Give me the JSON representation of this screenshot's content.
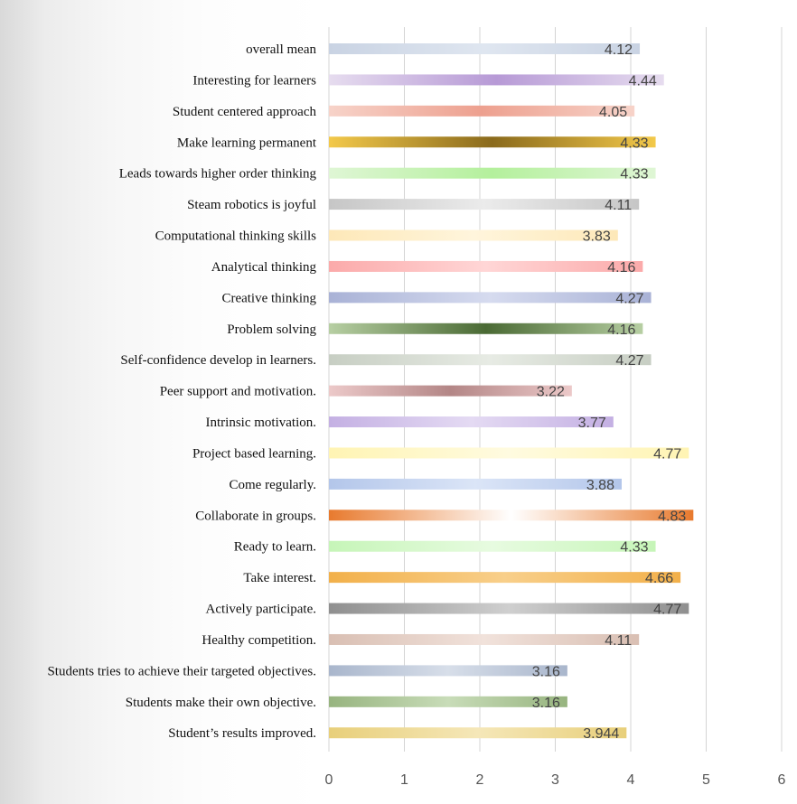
{
  "chart_data": {
    "type": "bar",
    "orientation": "horizontal",
    "title": "",
    "xlabel": "",
    "ylabel": "",
    "xlim": [
      0,
      6
    ],
    "x_ticks": [
      "0",
      "1",
      "2",
      "3",
      "4",
      "5",
      "6"
    ],
    "grid": "vertical",
    "legend": "none",
    "categories": [
      "overall mean",
      "Interesting for learners",
      "Student centered approach",
      "Make learning permanent",
      "Leads towards higher order thinking",
      "Steam robotics is joyful",
      "Computational thinking skills",
      "Analytical thinking",
      "Creative thinking",
      "Problem solving",
      "Self-confidence develop in learners.",
      "Peer support and motivation.",
      "Intrinsic motivation.",
      "Project based learning.",
      "Come regularly.",
      "Collaborate in groups.",
      "Ready to learn.",
      "Take interest.",
      "Actively participate.",
      "Healthy competition.",
      "Students tries to achieve their targeted objectives.",
      "Students make their own objective.",
      "Student’s results improved."
    ],
    "values": [
      4.12,
      4.44,
      4.05,
      4.33,
      4.33,
      4.11,
      3.83,
      4.16,
      4.27,
      4.16,
      4.27,
      3.22,
      3.77,
      4.77,
      3.88,
      4.83,
      4.33,
      4.66,
      4.77,
      4.11,
      3.16,
      3.16,
      3.944
    ],
    "value_labels": [
      "4.12",
      "4.44",
      "4.05",
      "4.33",
      "4.33",
      "4.11",
      "3.83",
      "4.16",
      "4.27",
      "4.16",
      "4.27",
      "3.22",
      "3.77",
      "4.77",
      "3.88",
      "4.83",
      "4.33",
      "4.66",
      "4.77",
      "4.11",
      "3.16",
      "3.16",
      "3.944"
    ],
    "bar_colors": [
      [
        "#c9d3e3",
        "#dfe6f0",
        "#c9d3e3"
      ],
      [
        "#e6dcef",
        "#b79ad6",
        "#e6dcef"
      ],
      [
        "#f7d3c9",
        "#eda08f",
        "#f7d3c9"
      ],
      [
        "#f3c94a",
        "#8a6a1c",
        "#f3c94a"
      ],
      [
        "#dff6d5",
        "#b4f09c",
        "#dff6d5"
      ],
      [
        "#c6c6c6",
        "#ebebeb",
        "#c6c6c6"
      ],
      [
        "#fde8b8",
        "#fff5dc",
        "#fde8b8"
      ],
      [
        "#fbaaaa",
        "#ffd6d6",
        "#fbaaaa"
      ],
      [
        "#a9b2d6",
        "#d6dbef",
        "#a9b2d6"
      ],
      [
        "#b7cfa3",
        "#4a6a34",
        "#b7cfa3"
      ],
      [
        "#c7cec3",
        "#e7ebe4",
        "#c7cec3"
      ],
      [
        "#ecc9c9",
        "#b38686",
        "#ecc9c9"
      ],
      [
        "#c4b0e3",
        "#e4daf3",
        "#c4b0e3"
      ],
      [
        "#fff4b3",
        "#fffbe0",
        "#fff4b3"
      ],
      [
        "#b3c6ea",
        "#dbe5f7",
        "#b3c6ea"
      ],
      [
        "#e87a2e",
        "#ffffff",
        "#e87a2e"
      ],
      [
        "#c6f5b8",
        "#e7fbe0",
        "#c6f5b8"
      ],
      [
        "#f2b04a",
        "#f8cf8a",
        "#f2b04a"
      ],
      [
        "#8f8f8f",
        "#cfcfcf",
        "#8f8f8f"
      ],
      [
        "#d9bfb3",
        "#f1e2db",
        "#d9bfb3"
      ],
      [
        "#a9b6cc",
        "#d7dee9",
        "#a9b6cc"
      ],
      [
        "#97b47f",
        "#c8dcb8",
        "#97b47f"
      ],
      [
        "#e8cf7a",
        "#f5e7b8",
        "#e8cf7a"
      ]
    ]
  }
}
